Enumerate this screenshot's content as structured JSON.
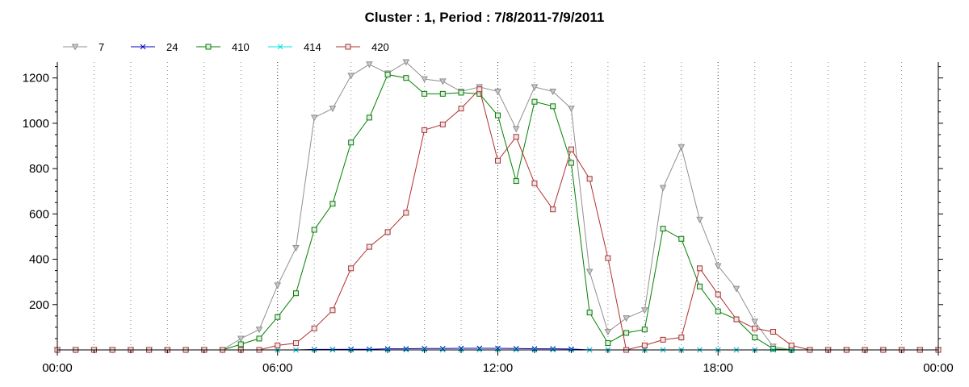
{
  "chart_data": {
    "type": "line",
    "title": "Cluster : 1, Period : 7/8/2011-7/9/2011",
    "xlabel": "",
    "ylabel": "",
    "x_range_hours": [
      0,
      24
    ],
    "ylim": [
      0,
      1270
    ],
    "x_ticks": [
      {
        "hour": 0,
        "label": "00:00"
      },
      {
        "hour": 6,
        "label": "06:00"
      },
      {
        "hour": 12,
        "label": "12:00"
      },
      {
        "hour": 18,
        "label": "18:00"
      },
      {
        "hour": 24,
        "label": "00:00"
      }
    ],
    "y_ticks": [
      200,
      400,
      600,
      800,
      1000,
      1200
    ],
    "grid": "vertical dotted",
    "legend_position": "top-left",
    "x_hours": [
      0,
      0.5,
      1,
      1.5,
      2,
      2.5,
      3,
      3.5,
      4,
      4.5,
      5,
      5.5,
      6,
      6.5,
      7,
      7.5,
      8,
      8.5,
      9,
      9.5,
      10,
      10.5,
      11,
      11.5,
      12,
      12.5,
      13,
      13.5,
      14,
      14.5,
      15,
      15.5,
      16,
      16.5,
      17,
      17.5,
      18,
      18.5,
      19,
      19.5,
      20,
      20.5,
      21,
      21.5,
      22,
      22.5,
      23,
      23.5,
      24
    ],
    "series": [
      {
        "name": "7",
        "color": "#909090",
        "marker": "triangle-down",
        "values": [
          0,
          0,
          0,
          0,
          0,
          0,
          0,
          0,
          0,
          0,
          50,
          90,
          285,
          450,
          1025,
          1065,
          1210,
          1260,
          1220,
          1270,
          1195,
          1185,
          1140,
          1160,
          1140,
          975,
          1160,
          1140,
          1065,
          345,
          80,
          140,
          175,
          715,
          895,
          575,
          370,
          270,
          125,
          15,
          0,
          0,
          0,
          0,
          0,
          0,
          0,
          0,
          0
        ]
      },
      {
        "name": "24",
        "color": "#0000c0",
        "marker": "x",
        "values": [
          0,
          0,
          0,
          0,
          0,
          0,
          0,
          0,
          0,
          0,
          0,
          0,
          0,
          0,
          2,
          2,
          3,
          3,
          5,
          5,
          6,
          6,
          7,
          7,
          7,
          6,
          5,
          5,
          4,
          0,
          0,
          0,
          0,
          0,
          0,
          0,
          0,
          0,
          0,
          0,
          0,
          0,
          0,
          0,
          0,
          0,
          0,
          0,
          0
        ]
      },
      {
        "name": "410",
        "color": "#008000",
        "marker": "square",
        "values": [
          0,
          0,
          0,
          0,
          0,
          0,
          0,
          0,
          0,
          0,
          25,
          50,
          145,
          250,
          530,
          645,
          915,
          1025,
          1215,
          1200,
          1130,
          1130,
          1135,
          1130,
          1035,
          745,
          1095,
          1075,
          825,
          165,
          30,
          75,
          90,
          535,
          490,
          280,
          170,
          135,
          55,
          5,
          0,
          0,
          0,
          0,
          0,
          0,
          0,
          0,
          0
        ]
      },
      {
        "name": "414",
        "color": "#00e0e0",
        "marker": "x",
        "values": [
          0,
          0,
          0,
          0,
          0,
          0,
          0,
          0,
          0,
          0,
          0,
          0,
          0,
          0,
          0,
          0,
          0,
          0,
          0,
          0,
          0,
          0,
          0,
          0,
          0,
          0,
          0,
          0,
          0,
          0,
          0,
          0,
          0,
          0,
          0,
          0,
          0,
          0,
          0,
          0,
          0,
          0,
          0,
          0,
          0,
          0,
          0,
          0,
          0
        ]
      },
      {
        "name": "420",
        "color": "#b03030",
        "marker": "square",
        "values": [
          0,
          0,
          0,
          0,
          0,
          0,
          0,
          0,
          0,
          0,
          0,
          0,
          20,
          30,
          95,
          175,
          360,
          455,
          520,
          605,
          970,
          995,
          1065,
          1150,
          835,
          940,
          735,
          620,
          885,
          755,
          405,
          0,
          20,
          45,
          55,
          360,
          245,
          135,
          95,
          80,
          20,
          0,
          0,
          0,
          0,
          0,
          0,
          0,
          0
        ]
      }
    ]
  }
}
